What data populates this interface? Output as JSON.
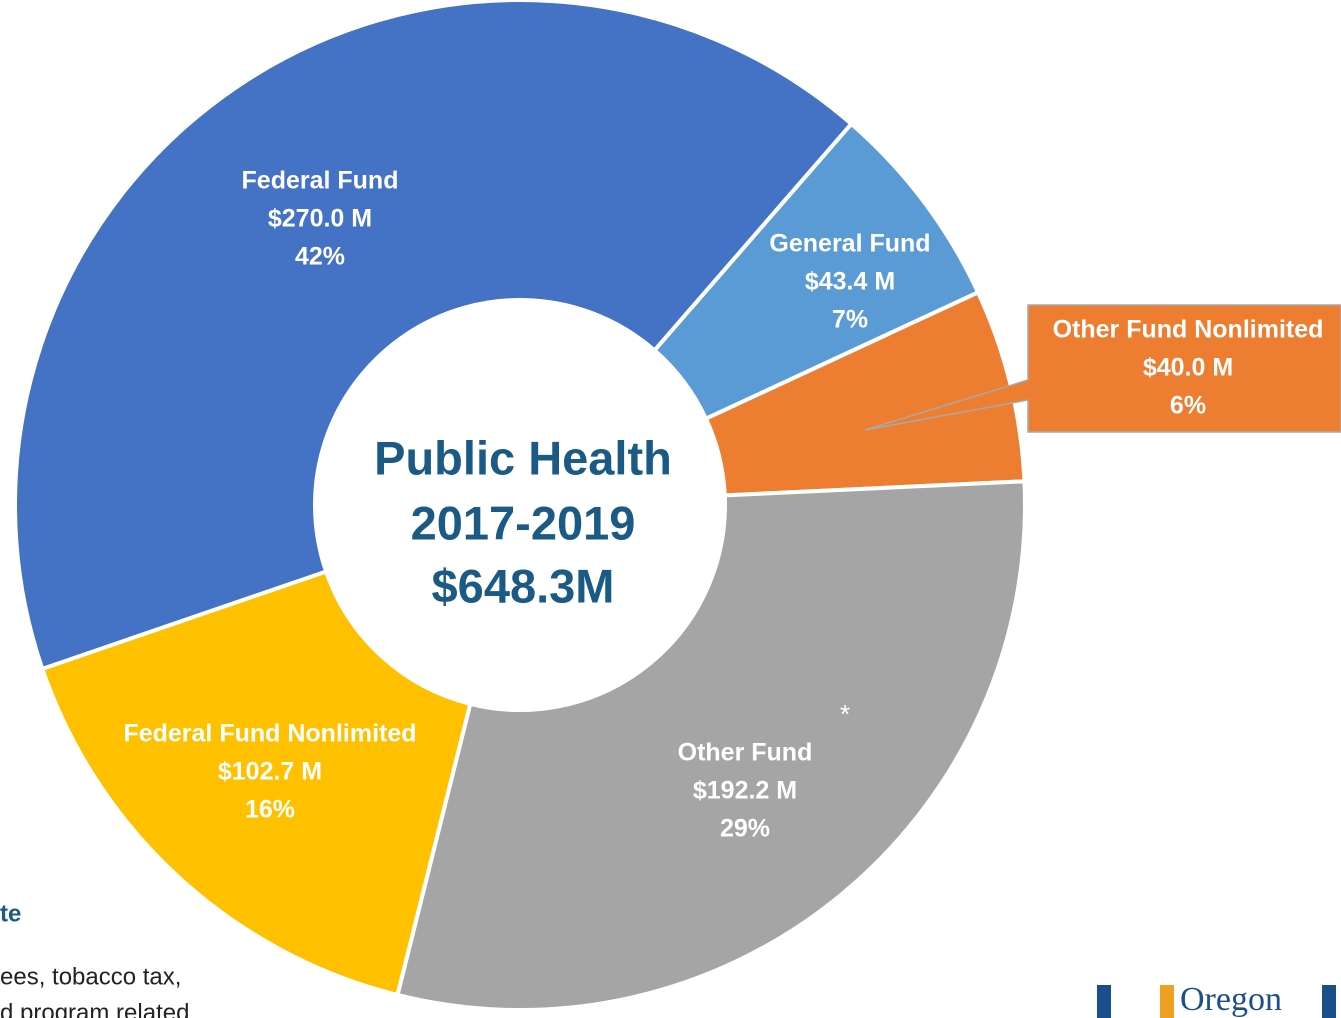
{
  "chart_data": {
    "type": "donut",
    "center_title": "Public Health",
    "center_period": "2017-2019",
    "center_total": "$648.3M",
    "categories": [
      "General Fund",
      "Other Fund Nonlimited",
      "Other Fund",
      "Federal Fund Nonlimited",
      "Federal Fund"
    ],
    "values": [
      43.4,
      40.0,
      192.2,
      102.7,
      270.0
    ],
    "value_labels": [
      "$43.4 M",
      "$40.0 M",
      "$192.2 M",
      "$102.7 M",
      "$270.0 M"
    ],
    "percents": [
      7,
      6,
      29,
      16,
      42
    ],
    "percent_labels": [
      "7%",
      "6%",
      "29%",
      "16%",
      "42%"
    ],
    "colors": [
      "#5b9bd5",
      "#ed7d31",
      "#a5a5a5",
      "#ffc000",
      "#4472c4"
    ],
    "annotation": "*"
  },
  "footer": {
    "note_heading": "te",
    "note_line1": "ees, tobacco tax,",
    "note_line2": "d program related",
    "logo": "Oregon"
  }
}
